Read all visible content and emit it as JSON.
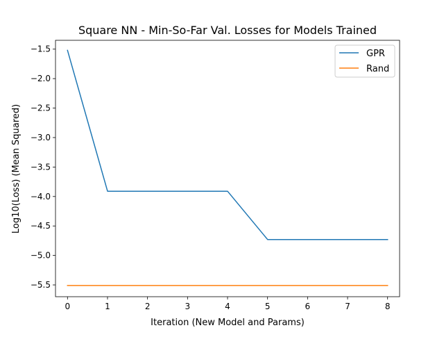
{
  "chart_data": {
    "type": "line",
    "title": "Square NN - Min-So-Far Val. Losses for Models Trained",
    "xlabel": "Iteration (New Model and Params)",
    "ylabel": "Log10(Loss)  (Mean Squared)",
    "xlim": [
      -0.3,
      8.3
    ],
    "ylim": [
      -5.7,
      -1.35
    ],
    "x_ticks": [
      0,
      1,
      2,
      3,
      4,
      5,
      6,
      7,
      8
    ],
    "x_tick_labels": [
      "0",
      "1",
      "2",
      "3",
      "4",
      "5",
      "6",
      "7",
      "8"
    ],
    "y_ticks": [
      -1.5,
      -2.0,
      -2.5,
      -3.0,
      -3.5,
      -4.0,
      -4.5,
      -5.0,
      -5.5
    ],
    "y_tick_labels": [
      "−1.5",
      "−2.0",
      "−2.5",
      "−3.0",
      "−3.5",
      "−4.0",
      "−4.5",
      "−5.0",
      "−5.5"
    ],
    "x": [
      0,
      1,
      2,
      3,
      4,
      5,
      6,
      7,
      8
    ],
    "series": [
      {
        "name": "GPR",
        "color": "#1f77b4",
        "values": [
          -1.52,
          -3.91,
          -3.91,
          -3.91,
          -3.91,
          -4.73,
          -4.73,
          -4.73,
          -4.73
        ]
      },
      {
        "name": "Rand",
        "color": "#ff7f0e",
        "values": [
          -5.51,
          -5.51,
          -5.51,
          -5.51,
          -5.51,
          -5.51,
          -5.51,
          -5.51,
          -5.51
        ]
      }
    ],
    "grid": false,
    "legend_position": "top-right"
  }
}
